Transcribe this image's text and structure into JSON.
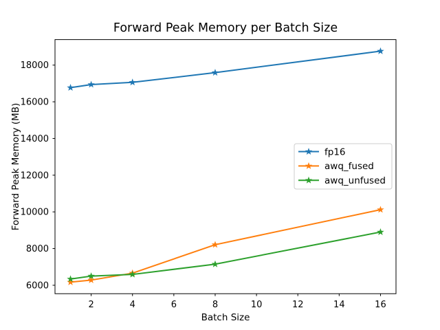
{
  "chart_data": {
    "type": "line",
    "title": "Forward Peak Memory per Batch Size",
    "xlabel": "Batch Size",
    "ylabel": "Forward Peak Memory (MB)",
    "x": [
      1,
      2,
      4,
      8,
      16
    ],
    "series": [
      {
        "name": "fp16",
        "color": "#1f77b4",
        "values": [
          16770,
          16940,
          17060,
          17590,
          18760
        ]
      },
      {
        "name": "awq_fused",
        "color": "#ff7f0e",
        "values": [
          6170,
          6280,
          6660,
          8210,
          10120
        ]
      },
      {
        "name": "awq_unfused",
        "color": "#2ca02c",
        "values": [
          6340,
          6500,
          6590,
          7150,
          8900
        ]
      }
    ],
    "xticks": [
      2,
      4,
      6,
      8,
      10,
      12,
      14,
      16
    ],
    "yticks": [
      6000,
      8000,
      10000,
      12000,
      14000,
      16000,
      18000
    ],
    "xlim": [
      0.25,
      16.75
    ],
    "ylim": [
      5540,
      19390
    ],
    "marker": "star",
    "grid": false,
    "legend_position": "center right",
    "background": "#ffffff",
    "text_color": "#000000",
    "spine_color": "#000000",
    "legend_border_color": "#cccccc"
  }
}
